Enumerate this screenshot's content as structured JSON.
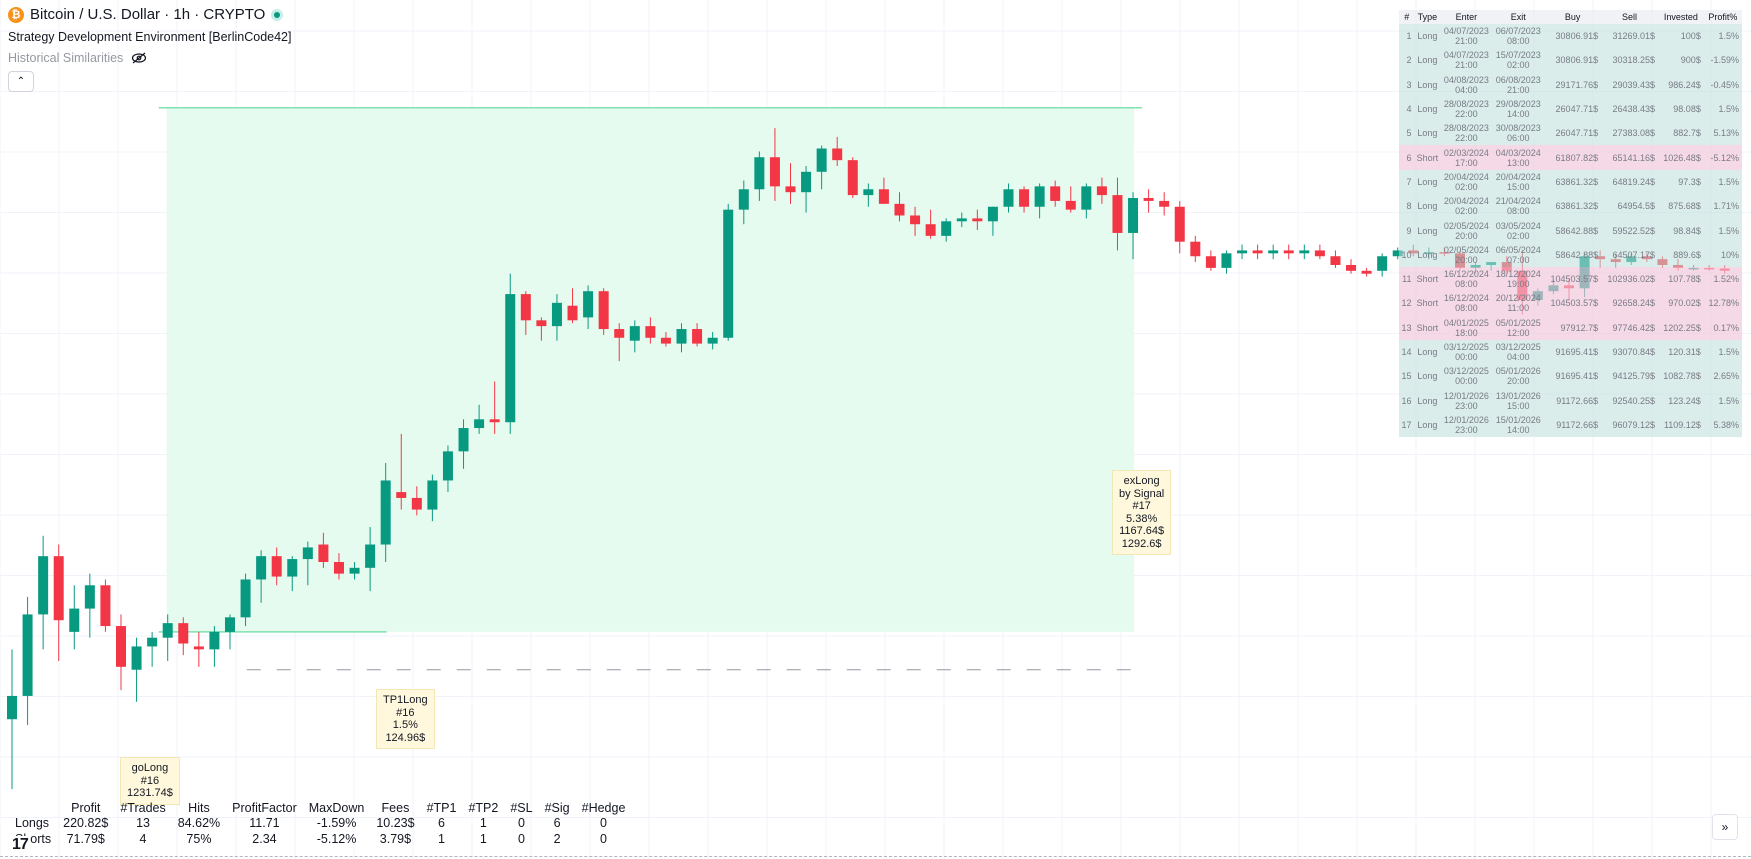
{
  "header": {
    "symbol_icon": "bitcoin-icon",
    "symbol_icon_letter": "₿",
    "title": "Bitcoin / U.S. Dollar · 1h · CRYPTO",
    "strategy": "Strategy Development Environment [BerlinCode42]",
    "historical": "Historical Similarities",
    "hide_icon": "eye-off-icon",
    "collapse_icon": "chevron-up-icon",
    "collapse_glyph": "⌃"
  },
  "colors": {
    "up": "#089981",
    "down": "#f23645",
    "zone_fill": "#e5fbef",
    "zone_line": "#7fe0b0",
    "short_row": "#f0c4d8",
    "long_row": "#bedeb8",
    "label_bg": "#fff8dc"
  },
  "trades_table": {
    "headers": [
      "#",
      "Type",
      "Enter",
      "Exit",
      "Buy",
      "Sell",
      "Invested",
      "Profit%"
    ],
    "rows": [
      {
        "n": "1",
        "type": "Long",
        "enter1": "04/07/2023",
        "enter2": "21:00",
        "exit1": "06/07/2023",
        "exit2": "08:00",
        "buy": "30806.91$",
        "sell": "31269.01$",
        "invested": "100$",
        "profit": "1.5%"
      },
      {
        "n": "2",
        "type": "Long",
        "enter1": "04/07/2023",
        "enter2": "21:00",
        "exit1": "15/07/2023",
        "exit2": "02:00",
        "buy": "30806.91$",
        "sell": "30318.25$",
        "invested": "900$",
        "profit": "-1.59%"
      },
      {
        "n": "3",
        "type": "Long",
        "enter1": "04/08/2023",
        "enter2": "04:00",
        "exit1": "06/08/2023",
        "exit2": "21:00",
        "buy": "29171.76$",
        "sell": "29039.43$",
        "invested": "986.24$",
        "profit": "-0.45%"
      },
      {
        "n": "4",
        "type": "Long",
        "enter1": "28/08/2023",
        "enter2": "22:00",
        "exit1": "29/08/2023",
        "exit2": "14:00",
        "buy": "26047.71$",
        "sell": "26438.43$",
        "invested": "98.08$",
        "profit": "1.5%"
      },
      {
        "n": "5",
        "type": "Long",
        "enter1": "28/08/2023",
        "enter2": "22:00",
        "exit1": "30/08/2023",
        "exit2": "06:00",
        "buy": "26047.71$",
        "sell": "27383.08$",
        "invested": "882.7$",
        "profit": "5.13%"
      },
      {
        "n": "6",
        "type": "Short",
        "enter1": "02/03/2024",
        "enter2": "17:00",
        "exit1": "04/03/2024",
        "exit2": "13:00",
        "buy": "61807.82$",
        "sell": "65141.16$",
        "invested": "1026.48$",
        "profit": "-5.12%"
      },
      {
        "n": "7",
        "type": "Long",
        "enter1": "20/04/2024",
        "enter2": "02:00",
        "exit1": "20/04/2024",
        "exit2": "15:00",
        "buy": "63861.32$",
        "sell": "64819.24$",
        "invested": "97.3$",
        "profit": "1.5%"
      },
      {
        "n": "8",
        "type": "Long",
        "enter1": "20/04/2024",
        "enter2": "02:00",
        "exit1": "21/04/2024",
        "exit2": "08:00",
        "buy": "63861.32$",
        "sell": "64954.5$",
        "invested": "875.68$",
        "profit": "1.71%"
      },
      {
        "n": "9",
        "type": "Long",
        "enter1": "02/05/2024",
        "enter2": "20:00",
        "exit1": "03/05/2024",
        "exit2": "02:00",
        "buy": "58642.88$",
        "sell": "59522.52$",
        "invested": "98.84$",
        "profit": "1.5%"
      },
      {
        "n": "10",
        "type": "Long",
        "enter1": "02/05/2024",
        "enter2": "20:00",
        "exit1": "06/05/2024",
        "exit2": "07:00",
        "buy": "58642.88$",
        "sell": "64507.17$",
        "invested": "889.6$",
        "profit": "10%"
      },
      {
        "n": "11",
        "type": "Short",
        "enter1": "16/12/2024",
        "enter2": "08:00",
        "exit1": "18/12/2024",
        "exit2": "19:00",
        "buy": "104503.57$",
        "sell": "102936.02$",
        "invested": "107.78$",
        "profit": "1.52%"
      },
      {
        "n": "12",
        "type": "Short",
        "enter1": "16/12/2024",
        "enter2": "08:00",
        "exit1": "20/12/2024",
        "exit2": "11:00",
        "buy": "104503.57$",
        "sell": "92658.24$",
        "invested": "970.02$",
        "profit": "12.78%"
      },
      {
        "n": "13",
        "type": "Short",
        "enter1": "04/01/2025",
        "enter2": "18:00",
        "exit1": "05/01/2025",
        "exit2": "12:00",
        "buy": "97912.7$",
        "sell": "97746.42$",
        "invested": "1202.25$",
        "profit": "0.17%"
      },
      {
        "n": "14",
        "type": "Long",
        "enter1": "03/12/2025",
        "enter2": "00:00",
        "exit1": "03/12/2025",
        "exit2": "04:00",
        "buy": "91695.41$",
        "sell": "93070.84$",
        "invested": "120.31$",
        "profit": "1.5%"
      },
      {
        "n": "15",
        "type": "Long",
        "enter1": "03/12/2025",
        "enter2": "00:00",
        "exit1": "05/01/2026",
        "exit2": "20:00",
        "buy": "91695.41$",
        "sell": "94125.79$",
        "invested": "1082.78$",
        "profit": "2.65%"
      },
      {
        "n": "16",
        "type": "Long",
        "enter1": "12/01/2026",
        "enter2": "23:00",
        "exit1": "13/01/2026",
        "exit2": "15:00",
        "buy": "91172.66$",
        "sell": "92540.25$",
        "invested": "123.24$",
        "profit": "1.5%"
      },
      {
        "n": "17",
        "type": "Long",
        "enter1": "12/01/2026",
        "enter2": "23:00",
        "exit1": "15/01/2026",
        "exit2": "14:00",
        "buy": "91172.66$",
        "sell": "96079.12$",
        "invested": "1109.12$",
        "profit": "5.38%"
      }
    ]
  },
  "labels": {
    "golong": {
      "l1": "goLong",
      "l2": "#16",
      "l3": "1231.74$"
    },
    "tp1long": {
      "l1": "TP1Long",
      "l2": "#16",
      "l3": "1.5%",
      "l4": "124.96$"
    },
    "exlong": {
      "l1": "exLong",
      "l2": "by Signal",
      "l3": "#17",
      "l4": "5.38%",
      "l5": "1167.64$",
      "l6": "1292.6$"
    }
  },
  "stats": {
    "headers": [
      "",
      "Profit",
      "#Trades",
      "Hits",
      "ProfitFactor",
      "MaxDown",
      "Fees",
      "#TP1",
      "#TP2",
      "#SL",
      "#Sig",
      "#Hedge"
    ],
    "longs": [
      "Longs",
      "220.82$",
      "13",
      "84.62%",
      "11.71",
      "-1.59%",
      "10.23$",
      "6",
      "1",
      "0",
      "6",
      "0"
    ],
    "shorts": [
      "Shorts",
      "71.79$",
      "4",
      "75%",
      "2.34",
      "-5.12%",
      "3.79$",
      "1",
      "1",
      "0",
      "2",
      "0"
    ]
  },
  "footer": {
    "logo_icon": "tradingview-logo",
    "logo_text": "17",
    "expand_icon": "double-chevron-right-icon",
    "expand_glyph": "»"
  },
  "chart_data": {
    "type": "candlestick",
    "series_name": "",
    "candles": [
      {
        "o": 91400,
        "h": 92600,
        "l": 90200,
        "c": 91800
      },
      {
        "o": 91800,
        "h": 93500,
        "l": 91300,
        "c": 93200
      },
      {
        "o": 93200,
        "h": 94550,
        "l": 92600,
        "c": 94200
      },
      {
        "o": 94200,
        "h": 94400,
        "l": 92400,
        "c": 93100
      },
      {
        "o": 92900,
        "h": 93700,
        "l": 92600,
        "c": 93300
      },
      {
        "o": 93300,
        "h": 93900,
        "l": 92800,
        "c": 93700
      },
      {
        "o": 93700,
        "h": 93800,
        "l": 92900,
        "c": 93000
      },
      {
        "o": 93000,
        "h": 93200,
        "l": 91900,
        "c": 92300
      },
      {
        "o": 92250,
        "h": 92800,
        "l": 91700,
        "c": 92650
      },
      {
        "o": 92650,
        "h": 92900,
        "l": 92300,
        "c": 92800
      },
      {
        "o": 92800,
        "h": 93200,
        "l": 92400,
        "c": 93050
      },
      {
        "o": 93050,
        "h": 93150,
        "l": 92500,
        "c": 92700
      },
      {
        "o": 92650,
        "h": 92900,
        "l": 92300,
        "c": 92600
      },
      {
        "o": 92600,
        "h": 93000,
        "l": 92300,
        "c": 92900
      },
      {
        "o": 92900,
        "h": 93200,
        "l": 92600,
        "c": 93150
      },
      {
        "o": 93150,
        "h": 93900,
        "l": 93000,
        "c": 93800
      },
      {
        "o": 93800,
        "h": 94300,
        "l": 93400,
        "c": 94200
      },
      {
        "o": 94200,
        "h": 94350,
        "l": 93700,
        "c": 93850
      },
      {
        "o": 93850,
        "h": 94200,
        "l": 93600,
        "c": 94150
      },
      {
        "o": 94150,
        "h": 94450,
        "l": 93700,
        "c": 94350
      },
      {
        "o": 94400,
        "h": 94600,
        "l": 94000,
        "c": 94100
      },
      {
        "o": 94100,
        "h": 94250,
        "l": 93800,
        "c": 93900
      },
      {
        "o": 93900,
        "h": 94100,
        "l": 93800,
        "c": 94000
      },
      {
        "o": 94000,
        "h": 94700,
        "l": 93600,
        "c": 94400
      },
      {
        "o": 94400,
        "h": 95800,
        "l": 94100,
        "c": 95500
      },
      {
        "o": 95300,
        "h": 96300,
        "l": 95000,
        "c": 95200
      },
      {
        "o": 95200,
        "h": 95400,
        "l": 94900,
        "c": 95000
      },
      {
        "o": 95000,
        "h": 95600,
        "l": 94800,
        "c": 95500
      },
      {
        "o": 95500,
        "h": 96100,
        "l": 95300,
        "c": 96000
      },
      {
        "o": 96000,
        "h": 96550,
        "l": 95700,
        "c": 96400
      },
      {
        "o": 96400,
        "h": 96800,
        "l": 96300,
        "c": 96550
      },
      {
        "o": 96550,
        "h": 97200,
        "l": 96300,
        "c": 96500
      },
      {
        "o": 96500,
        "h": 99050,
        "l": 96300,
        "c": 98700
      },
      {
        "o": 98700,
        "h": 98750,
        "l": 98000,
        "c": 98250
      },
      {
        "o": 98250,
        "h": 98300,
        "l": 97900,
        "c": 98150
      },
      {
        "o": 98150,
        "h": 98700,
        "l": 97900,
        "c": 98550
      },
      {
        "o": 98500,
        "h": 98800,
        "l": 98200,
        "c": 98250
      },
      {
        "o": 98300,
        "h": 98850,
        "l": 98100,
        "c": 98750
      },
      {
        "o": 98750,
        "h": 98800,
        "l": 98000,
        "c": 98100
      },
      {
        "o": 98100,
        "h": 98200,
        "l": 97550,
        "c": 97950
      },
      {
        "o": 97900,
        "h": 98250,
        "l": 97700,
        "c": 98150
      },
      {
        "o": 98150,
        "h": 98300,
        "l": 97850,
        "c": 97950
      },
      {
        "o": 97950,
        "h": 98050,
        "l": 97800,
        "c": 97850
      },
      {
        "o": 97850,
        "h": 98200,
        "l": 97700,
        "c": 98100
      },
      {
        "o": 98100,
        "h": 98200,
        "l": 97800,
        "c": 97850
      },
      {
        "o": 97850,
        "h": 98050,
        "l": 97750,
        "c": 97950
      },
      {
        "o": 97950,
        "h": 100250,
        "l": 97900,
        "c": 100150
      },
      {
        "o": 100150,
        "h": 100650,
        "l": 99900,
        "c": 100500
      },
      {
        "o": 100500,
        "h": 101150,
        "l": 100300,
        "c": 101050
      },
      {
        "o": 101050,
        "h": 101550,
        "l": 100300,
        "c": 100550
      },
      {
        "o": 100550,
        "h": 100950,
        "l": 100250,
        "c": 100450
      },
      {
        "o": 100450,
        "h": 100900,
        "l": 100100,
        "c": 100800
      },
      {
        "o": 100800,
        "h": 101250,
        "l": 100500,
        "c": 101200
      },
      {
        "o": 101200,
        "h": 101400,
        "l": 100900,
        "c": 101000
      },
      {
        "o": 101000,
        "h": 101050,
        "l": 100350,
        "c": 100400
      },
      {
        "o": 100400,
        "h": 100600,
        "l": 100200,
        "c": 100500
      },
      {
        "o": 100500,
        "h": 100700,
        "l": 100300,
        "c": 100250
      },
      {
        "o": 100250,
        "h": 100450,
        "l": 99950,
        "c": 100050
      },
      {
        "o": 100050,
        "h": 100200,
        "l": 99700,
        "c": 99900
      },
      {
        "o": 99900,
        "h": 100150,
        "l": 99650,
        "c": 99700
      },
      {
        "o": 99700,
        "h": 100000,
        "l": 99600,
        "c": 99950
      },
      {
        "o": 99950,
        "h": 100100,
        "l": 99850,
        "c": 100000
      },
      {
        "o": 100000,
        "h": 100150,
        "l": 99800,
        "c": 99950
      },
      {
        "o": 99950,
        "h": 100200,
        "l": 99700,
        "c": 100200
      },
      {
        "o": 100200,
        "h": 100600,
        "l": 100100,
        "c": 100500
      },
      {
        "o": 100500,
        "h": 100550,
        "l": 100100,
        "c": 100200
      },
      {
        "o": 100200,
        "h": 100600,
        "l": 100000,
        "c": 100550
      },
      {
        "o": 100550,
        "h": 100650,
        "l": 100200,
        "c": 100300
      },
      {
        "o": 100300,
        "h": 100550,
        "l": 100100,
        "c": 100150
      },
      {
        "o": 100150,
        "h": 100600,
        "l": 100000,
        "c": 100550
      },
      {
        "o": 100550,
        "h": 100700,
        "l": 100250,
        "c": 100400
      },
      {
        "o": 100400,
        "h": 100700,
        "l": 99450,
        "c": 99750
      },
      {
        "o": 99750,
        "h": 100450,
        "l": 99300,
        "c": 100350
      },
      {
        "o": 100350,
        "h": 100500,
        "l": 100100,
        "c": 100300
      },
      {
        "o": 100300,
        "h": 100450,
        "l": 100050,
        "c": 100200
      },
      {
        "o": 100200,
        "h": 100300,
        "l": 99400,
        "c": 99600
      },
      {
        "o": 99600,
        "h": 99700,
        "l": 99250,
        "c": 99350
      },
      {
        "o": 99350,
        "h": 99450,
        "l": 99100,
        "c": 99150
      },
      {
        "o": 99150,
        "h": 99450,
        "l": 99050,
        "c": 99400
      },
      {
        "o": 99400,
        "h": 99550,
        "l": 99300,
        "c": 99450
      },
      {
        "o": 99450,
        "h": 99550,
        "l": 99300,
        "c": 99400
      },
      {
        "o": 99400,
        "h": 99550,
        "l": 99300,
        "c": 99450
      },
      {
        "o": 99450,
        "h": 99550,
        "l": 99300,
        "c": 99400
      },
      {
        "o": 99400,
        "h": 99550,
        "l": 99300,
        "c": 99450
      },
      {
        "o": 99450,
        "h": 99550,
        "l": 99300,
        "c": 99350
      },
      {
        "o": 99350,
        "h": 99450,
        "l": 99150,
        "c": 99200
      },
      {
        "o": 99200,
        "h": 99300,
        "l": 99050,
        "c": 99100
      },
      {
        "o": 99100,
        "h": 99150,
        "l": 99000,
        "c": 99050
      },
      {
        "o": 99100,
        "h": 99400,
        "l": 99000,
        "c": 99350
      },
      {
        "o": 99350,
        "h": 99500,
        "l": 99300,
        "c": 99450
      },
      {
        "o": 99450,
        "h": 99550,
        "l": 99350,
        "c": 99400
      },
      {
        "o": 99400,
        "h": 99500,
        "l": 99300,
        "c": 99420
      },
      {
        "o": 99420,
        "h": 99500,
        "l": 99350,
        "c": 99400
      },
      {
        "o": 99400,
        "h": 99450,
        "l": 99100,
        "c": 99150
      },
      {
        "o": 99150,
        "h": 99250,
        "l": 99050,
        "c": 99200
      },
      {
        "o": 99200,
        "h": 99250,
        "l": 99100,
        "c": 99250
      },
      {
        "o": 99250,
        "h": 99350,
        "l": 99050,
        "c": 99100
      },
      {
        "o": 99100,
        "h": 99450,
        "l": 98350,
        "c": 98600
      },
      {
        "o": 98600,
        "h": 98800,
        "l": 98500,
        "c": 98750
      },
      {
        "o": 98750,
        "h": 98950,
        "l": 98700,
        "c": 98850
      },
      {
        "o": 98850,
        "h": 98950,
        "l": 98600,
        "c": 98800
      },
      {
        "o": 98800,
        "h": 99400,
        "l": 98650,
        "c": 99350
      },
      {
        "o": 99350,
        "h": 99450,
        "l": 99150,
        "c": 99300
      },
      {
        "o": 99300,
        "h": 99400,
        "l": 99150,
        "c": 99250
      },
      {
        "o": 99250,
        "h": 99400,
        "l": 99200,
        "c": 99350
      },
      {
        "o": 99350,
        "h": 99400,
        "l": 99250,
        "c": 99300
      },
      {
        "o": 99300,
        "h": 99350,
        "l": 99150,
        "c": 99200
      },
      {
        "o": 99200,
        "h": 99300,
        "l": 99100,
        "c": 99150
      },
      {
        "o": 99150,
        "h": 99200,
        "l": 99100,
        "c": 99150
      },
      {
        "o": 99150,
        "h": 99200,
        "l": 99100,
        "c": 99140
      },
      {
        "o": 99140,
        "h": 99200,
        "l": 99050,
        "c": 99100
      }
    ],
    "zone": {
      "entry_price": 92900,
      "target_price": 101900,
      "stop_price": 92250,
      "start_candle": 10,
      "end_candle": 72
    },
    "ylim": [
      89000,
      103750
    ]
  }
}
